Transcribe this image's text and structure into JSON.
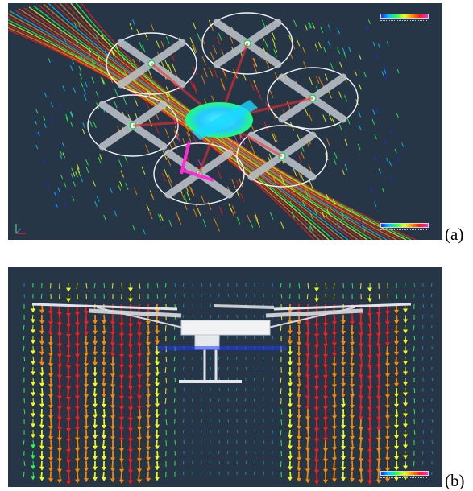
{
  "figure": {
    "panels": [
      {
        "id": "a",
        "caption": "(a)",
        "view": "top",
        "legend_count": 2
      },
      {
        "id": "b",
        "caption": "(b)",
        "view": "side",
        "legend_count": 1
      }
    ],
    "colors": {
      "background": "#263647",
      "velocity_scale": [
        "#1a2cff",
        "#00c8ff",
        "#24ff4a",
        "#f2ff1a",
        "#ff8a00",
        "#ff1a1a",
        "#ff2bd6"
      ],
      "frame": "#c9cdd2",
      "rotor_circle": "#f2f4f6"
    },
    "icons": [
      "axis-triad-icon"
    ]
  }
}
